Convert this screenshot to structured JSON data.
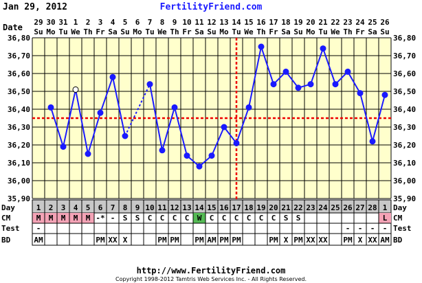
{
  "header": {
    "print_date": "Jan 29, 2012",
    "site_name": "FertilityFriend.com"
  },
  "footer": {
    "url": "http://www.FertilityFriend.com",
    "copyright": "Copyright 1998-2012 Tamtris Web Services Inc. - All Rights Reserved."
  },
  "colors": {
    "background": "#ffffff",
    "plot_background": "#ffffcc",
    "grid": "#000000",
    "line": "#1a1aff",
    "coverline": "#ee0000",
    "ovulation_line": "#ee0000",
    "day_row": "#c8c8c8",
    "menstruation_cell": "#f4a3b6",
    "egg_white_cell": "#55bb55",
    "site_name": "#1a1aff"
  },
  "chart_data": {
    "type": "line",
    "title": "FertilityFriend.com",
    "ylim": [
      35.9,
      36.8
    ],
    "yticks": [
      "35,90",
      "36,00",
      "36,10",
      "36,20",
      "36,30",
      "36,40",
      "36,50",
      "36,60",
      "36,70",
      "36,80"
    ],
    "coverline": 36.35,
    "ovulation_after_cycle_day": 17,
    "row_labels": {
      "date": "Date",
      "day": "Day",
      "cm": "CM",
      "test": "Test",
      "bd": "BD"
    },
    "dates": [
      "29",
      "30",
      "31",
      "1",
      "2",
      "3",
      "4",
      "5",
      "6",
      "7",
      "8",
      "9",
      "10",
      "11",
      "12",
      "13",
      "14",
      "15",
      "16",
      "17",
      "18",
      "19",
      "20",
      "21",
      "22",
      "23",
      "24",
      "25",
      "26"
    ],
    "weekdays": [
      "Su",
      "Mo",
      "Tu",
      "We",
      "Th",
      "Fr",
      "Sa",
      "Su",
      "Mo",
      "Tu",
      "We",
      "Th",
      "Fr",
      "Sa",
      "Su",
      "Mo",
      "Tu",
      "We",
      "Th",
      "Fr",
      "Sa",
      "Su",
      "Mo",
      "Tu",
      "We",
      "Th",
      "Fr",
      "Sa",
      "Su"
    ],
    "cycle_days": [
      "1",
      "2",
      "3",
      "4",
      "5",
      "6",
      "7",
      "8",
      "9",
      "10",
      "11",
      "12",
      "13",
      "14",
      "15",
      "16",
      "17",
      "18",
      "19",
      "20",
      "21",
      "22",
      "23",
      "24",
      "25",
      "26",
      "27",
      "28",
      "1"
    ],
    "temperatures": [
      null,
      36.41,
      36.19,
      36.51,
      36.15,
      36.38,
      36.58,
      36.25,
      null,
      36.54,
      36.17,
      36.41,
      36.14,
      36.08,
      36.14,
      36.3,
      36.21,
      36.41,
      36.75,
      36.54,
      36.61,
      36.52,
      36.54,
      36.74,
      36.54,
      36.61,
      36.49,
      36.22,
      36.48
    ],
    "open_points": [
      false,
      false,
      false,
      true,
      false,
      false,
      false,
      false,
      false,
      false,
      false,
      false,
      false,
      false,
      false,
      false,
      false,
      false,
      false,
      false,
      false,
      false,
      false,
      false,
      false,
      false,
      false,
      false,
      false
    ],
    "dashed_segments": [
      [
        7,
        9
      ]
    ],
    "cervical_mucus": [
      "M",
      "M",
      "M",
      "M",
      "M",
      "-*",
      "-",
      "S",
      "S",
      "C",
      "C",
      "C",
      "C",
      "W",
      "C",
      "C",
      "C",
      "C",
      "C",
      "C",
      "S",
      "S",
      "",
      "",
      "",
      "",
      "",
      "",
      "L"
    ],
    "cm_highlight": [
      "menstruation",
      "menstruation",
      "menstruation",
      "menstruation",
      "menstruation",
      "",
      "",
      "",
      "",
      "",
      "",
      "",
      "",
      "egg-white",
      "",
      "",
      "",
      "",
      "",
      "",
      "",
      "",
      "",
      "",
      "",
      "",
      "",
      "",
      "menstruation"
    ],
    "test": [
      "-",
      "",
      "",
      "",
      "",
      "",
      "",
      "",
      "",
      "",
      "",
      "",
      "",
      "",
      "",
      "",
      "",
      "",
      "",
      "",
      "",
      "",
      "",
      "",
      "",
      "-",
      "-",
      "-",
      "-"
    ],
    "bd": [
      "AM",
      "",
      "",
      "",
      "",
      "PM",
      "XX",
      "X",
      "",
      "",
      "PM",
      "PM",
      "",
      "PM",
      "AM",
      "PM",
      "PM",
      "",
      "",
      "PM",
      "X",
      "PM",
      "XX",
      "XX",
      "",
      "PM",
      "X",
      "XX",
      "AM"
    ]
  }
}
